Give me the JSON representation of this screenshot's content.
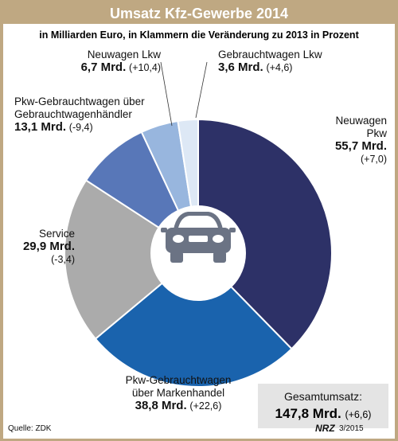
{
  "header": {
    "title": "Umsatz Kfz-Gewerbe 2014"
  },
  "subtitle": "in Milliarden Euro, in Klammern die Veränderung zu 2013 in Prozent",
  "chart_data": {
    "type": "pie",
    "title": "Umsatz Kfz-Gewerbe 2014",
    "subtitle": "in Milliarden Euro, in Klammern die Veränderung zu 2013 in Prozent",
    "unit": "Mrd.",
    "total": 147.8,
    "slices": [
      {
        "label_1": "Neuwagen",
        "label_2": "Pkw",
        "value": 55.7,
        "value_text": "55,7 Mrd.",
        "change": "(+7,0)",
        "color": "#2d3167"
      },
      {
        "label_1": "Pkw-Gebrauchtwagen",
        "label_2": "über Markenhandel",
        "value": 38.8,
        "value_text": "38,8 Mrd.",
        "change": "(+22,6)",
        "color": "#1a63ad"
      },
      {
        "label_1": "Service",
        "label_2": "",
        "value": 29.9,
        "value_text": "29,9 Mrd.",
        "change": "(-3,4)",
        "color": "#ababab"
      },
      {
        "label_1": "Pkw-Gebrauchtwagen über",
        "label_2": "Gebrauchtwagenhändler",
        "value": 13.1,
        "value_text": "13,1 Mrd.",
        "change": "(-9,4)",
        "color": "#5877b8"
      },
      {
        "label_1": "Neuwagen Lkw",
        "label_2": "",
        "value": 6.7,
        "value_text": "6,7 Mrd.",
        "change": "(+10,4)",
        "color": "#98b6de"
      },
      {
        "label_1": "Gebrauchtwagen Lkw",
        "label_2": "",
        "value": 3.6,
        "value_text": "3,6 Mrd.",
        "change": "(+4,6)",
        "color": "#dde8f5"
      }
    ]
  },
  "total_box": {
    "label": "Gesamtumsatz:",
    "value": "147,8 Mrd.",
    "change": "(+6,6)"
  },
  "source": "Quelle: ZDK",
  "brand": "NRZ",
  "date": "3/2015",
  "icons": {
    "center": "car-icon"
  }
}
